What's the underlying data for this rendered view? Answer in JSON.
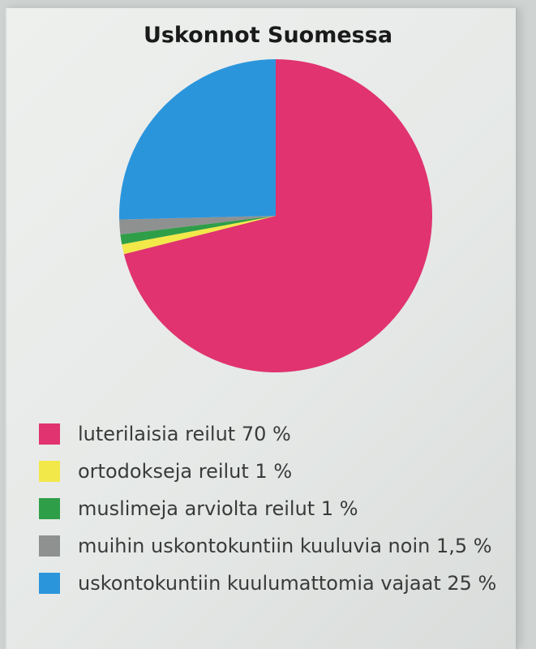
{
  "chart_data": {
    "type": "pie",
    "title": "Uskonnot Suomessa",
    "slices": [
      {
        "label": "luterilaisia reilut 70 %",
        "value": 70,
        "color": "#e0336f"
      },
      {
        "label": "ortodokseja reilut 1 %",
        "value": 1,
        "color": "#f2e84a"
      },
      {
        "label": "muslimeja arviolta reilut 1 %",
        "value": 1,
        "color": "#2f9e48"
      },
      {
        "label": "muihin uskontokuntiin kuuluvia noin 1,5 %",
        "value": 1.5,
        "color": "#8f9191"
      },
      {
        "label": "uskontokuntiin kuulumattomia vajaat 25 %",
        "value": 25,
        "color": "#2b95dc"
      }
    ],
    "legend_position": "bottom"
  }
}
